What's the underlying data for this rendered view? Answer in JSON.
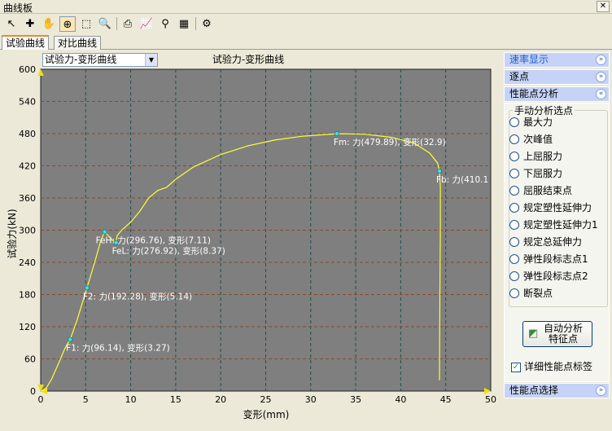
{
  "window": {
    "title": "曲线板",
    "close": "✕"
  },
  "toolbar": [
    {
      "name": "pointer-icon",
      "glyph": "↖"
    },
    {
      "name": "crosshair-icon",
      "glyph": "✚"
    },
    {
      "name": "hand-icon",
      "glyph": "✋"
    },
    {
      "name": "zoom-in-icon",
      "glyph": "⊕"
    },
    {
      "name": "zoom-rect-icon",
      "glyph": "⬚"
    },
    {
      "name": "zoom-out-icon",
      "glyph": "🔍"
    },
    {
      "name": "print-icon",
      "glyph": "⎙"
    },
    {
      "name": "chart-settings-icon",
      "glyph": "📈"
    },
    {
      "name": "binoculars-icon",
      "glyph": "⚲"
    },
    {
      "name": "table-icon",
      "glyph": "▦"
    },
    {
      "name": "export-icon",
      "glyph": "⚙"
    }
  ],
  "tabs": [
    "试验曲线",
    "对比曲线"
  ],
  "plot": {
    "curve_select": "试验力-变形曲线",
    "title": "试验力-变形曲线",
    "xlabel": "变形(mm)",
    "ylabel": "试验力(kN)"
  },
  "chart_data": {
    "type": "line",
    "title": "试验力-变形曲线",
    "xlabel": "变形(mm)",
    "ylabel": "试验力(kN)",
    "xlim": [
      0,
      50
    ],
    "ylim": [
      0,
      600
    ],
    "xticks": [
      0,
      5,
      10,
      15,
      20,
      25,
      30,
      35,
      40,
      45,
      50
    ],
    "yticks": [
      0,
      60,
      120,
      180,
      240,
      300,
      360,
      420,
      480,
      540,
      600
    ],
    "grid": true,
    "background": "#7f7f7f",
    "line_color": "#ffff33",
    "series": [
      {
        "points": [
          [
            0,
            0
          ],
          [
            0.6,
            5
          ],
          [
            1.2,
            22
          ],
          [
            2,
            52
          ],
          [
            2.7,
            80
          ],
          [
            3.27,
            96.14
          ],
          [
            4,
            130
          ],
          [
            5.14,
            192.28
          ],
          [
            6,
            240
          ],
          [
            6.7,
            282
          ],
          [
            7.11,
            296.76
          ],
          [
            7.5,
            290
          ],
          [
            7.9,
            282
          ],
          [
            8.37,
            276.92
          ],
          [
            8.5,
            290
          ],
          [
            9,
            300
          ],
          [
            10,
            315
          ],
          [
            11,
            335
          ],
          [
            12,
            360
          ],
          [
            13,
            374
          ],
          [
            14,
            380
          ],
          [
            15,
            395
          ],
          [
            17,
            418
          ],
          [
            20,
            441
          ],
          [
            23,
            457
          ],
          [
            26,
            468
          ],
          [
            29,
            475
          ],
          [
            32.9,
            479.89
          ],
          [
            36,
            479
          ],
          [
            39,
            473
          ],
          [
            41.5,
            462
          ],
          [
            43.2,
            444
          ],
          [
            44.1,
            425
          ],
          [
            44.3,
            410.1
          ],
          [
            44.4,
            380
          ],
          [
            44.4,
            300
          ],
          [
            44.35,
            180
          ],
          [
            44.3,
            20
          ]
        ]
      }
    ],
    "markers": [
      {
        "x": 3.27,
        "y": 96.14,
        "label": "F1: 力(96.14), 变形(3.27)"
      },
      {
        "x": 5.14,
        "y": 192.28,
        "label": "F2: 力(192.28), 变形(5.14)"
      },
      {
        "x": 7.11,
        "y": 296.76,
        "label": "FeH: 力(296.76), 变形(7.11)"
      },
      {
        "x": 8.37,
        "y": 276.92,
        "label": "FeL: 力(276.92), 变形(8.37)"
      },
      {
        "x": 32.9,
        "y": 479.89,
        "label": "Fm: 力(479.89), 变形(32.9)"
      },
      {
        "x": 44.3,
        "y": 410.1,
        "label": "Fb: 力(410.1"
      }
    ]
  },
  "side": {
    "rate_display": "速率显示",
    "point_by_point": "逐点",
    "performance_analysis": "性能点分析",
    "manual_group": "手动分析选点",
    "options": [
      "最大力",
      "次峰值",
      "上屈服力",
      "下屈服力",
      "屈服结束点",
      "规定塑性延伸力",
      "规定塑性延伸力1",
      "规定总延伸力",
      "弹性段标志点1",
      "弹性段标志点2",
      "断裂点"
    ],
    "auto_button_line1": "自动分析",
    "auto_button_line2": "特征点",
    "detail_label": "详细性能点标签",
    "point_select": "性能点选择",
    "chev_down": "»",
    "chev_up": "«"
  }
}
